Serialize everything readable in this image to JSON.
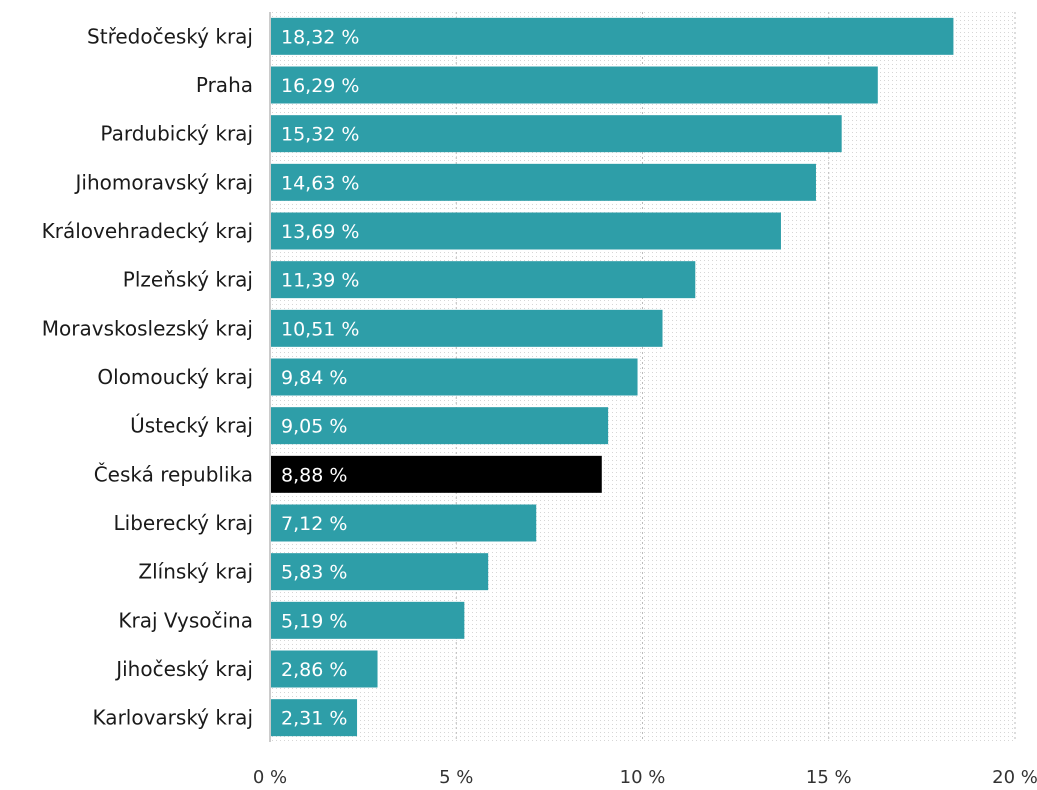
{
  "chart_data": {
    "type": "bar",
    "orientation": "horizontal",
    "categories": [
      "Středočeský kraj",
      "Praha",
      "Pardubický kraj",
      "Jihomoravský kraj",
      "Královehradecký kraj",
      "Plzeňský kraj",
      "Moravskoslezský kraj",
      "Olomoucký kraj",
      "Ústecký kraj",
      "Česká republika",
      "Liberecký kraj",
      "Zlínský kraj",
      "Kraj Vysočina",
      "Jihočeský kraj",
      "Karlovarský kraj"
    ],
    "values": [
      18.32,
      16.29,
      15.32,
      14.63,
      13.69,
      11.39,
      10.51,
      9.84,
      9.05,
      8.88,
      7.12,
      5.83,
      5.19,
      2.86,
      2.31
    ],
    "value_labels": [
      "18,32 %",
      "16,29 %",
      "15,32 %",
      "14,63 %",
      "13,69 %",
      "11,39 %",
      "10,51 %",
      "9,84 %",
      "9,05 %",
      "8,88 %",
      "7,12 %",
      "5,83 %",
      "5,19 %",
      "2,86 %",
      "2,31 %"
    ],
    "highlight_category": "Česká republika",
    "xlim": [
      0,
      20
    ],
    "xticks": [
      0,
      5,
      10,
      15,
      20
    ],
    "xtick_labels": [
      "0 %",
      "5 %",
      "10 %",
      "15 %",
      "20 %"
    ],
    "title": "",
    "xlabel": "",
    "ylabel": "",
    "grid": "vertical dotted",
    "legend": "none",
    "colors": {
      "bar": "#2e9ea8",
      "highlight_bar": "#000000",
      "value_label": "#ffffff",
      "gridline": "#bbbbbb"
    }
  }
}
